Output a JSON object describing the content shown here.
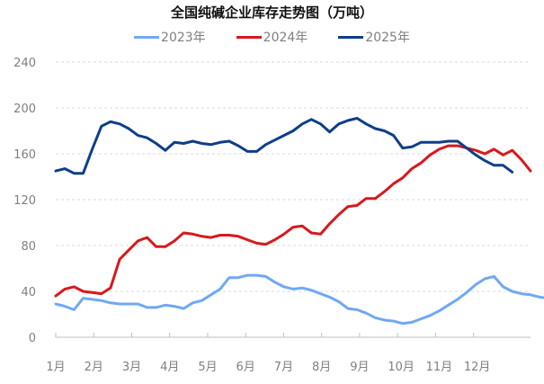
{
  "chart_data": {
    "type": "line",
    "title": "全国纯碱企业库存走势图（万吨）",
    "xlabel": "",
    "ylabel": "",
    "ylim": [
      0,
      240
    ],
    "yticks": [
      0,
      40,
      80,
      120,
      160,
      200,
      240
    ],
    "grid": true,
    "legend_position": "top",
    "categories": [
      "1月",
      "2月",
      "3月",
      "4月",
      "5月",
      "6月",
      "7月",
      "8月",
      "9月",
      "10月",
      "11月",
      "12月"
    ],
    "x_unit": "week index (0-51)",
    "series": [
      {
        "name": "2023年",
        "color": "#6FA8F5",
        "values": [
          29,
          27,
          24,
          34,
          33,
          32,
          30,
          29,
          29,
          29,
          26,
          26,
          28,
          27,
          25,
          30,
          32,
          37,
          42,
          52,
          52,
          54,
          54,
          53,
          48,
          44,
          42,
          43,
          41,
          38,
          35,
          31,
          25,
          24,
          21,
          17,
          15,
          14,
          12,
          13,
          16,
          19,
          23,
          28,
          33,
          39,
          46,
          51,
          53,
          44,
          40,
          38,
          37,
          35,
          34,
          35
        ]
      },
      {
        "name": "2024年",
        "color": "#D7191C",
        "values": [
          36,
          42,
          44,
          40,
          39,
          38,
          43,
          68,
          76,
          84,
          87,
          79,
          79,
          84,
          91,
          90,
          88,
          87,
          89,
          89,
          88,
          85,
          82,
          81,
          85,
          90,
          96,
          97,
          91,
          90,
          99,
          107,
          114,
          115,
          121,
          121,
          127,
          134,
          139,
          147,
          152,
          159,
          164,
          167,
          167,
          165,
          163,
          160,
          164,
          159,
          163,
          155,
          145
        ]
      },
      {
        "name": "2025年",
        "color": "#0D3E8A",
        "values": [
          145,
          147,
          143,
          143,
          164,
          184,
          188,
          186,
          182,
          176,
          174,
          169,
          163,
          170,
          169,
          171,
          169,
          168,
          170,
          171,
          167,
          162,
          162,
          168,
          172,
          176,
          180,
          186,
          190,
          186,
          179,
          186,
          189,
          191,
          186,
          182,
          180,
          176,
          165,
          166,
          170,
          170,
          170,
          171,
          171,
          165,
          159,
          154,
          150,
          150,
          144
        ]
      }
    ]
  },
  "legend": {
    "items": [
      {
        "label": "2023年",
        "color": "#6FA8F5"
      },
      {
        "label": "2024年",
        "color": "#D7191C"
      },
      {
        "label": "2025年",
        "color": "#0D3E8A"
      }
    ]
  }
}
